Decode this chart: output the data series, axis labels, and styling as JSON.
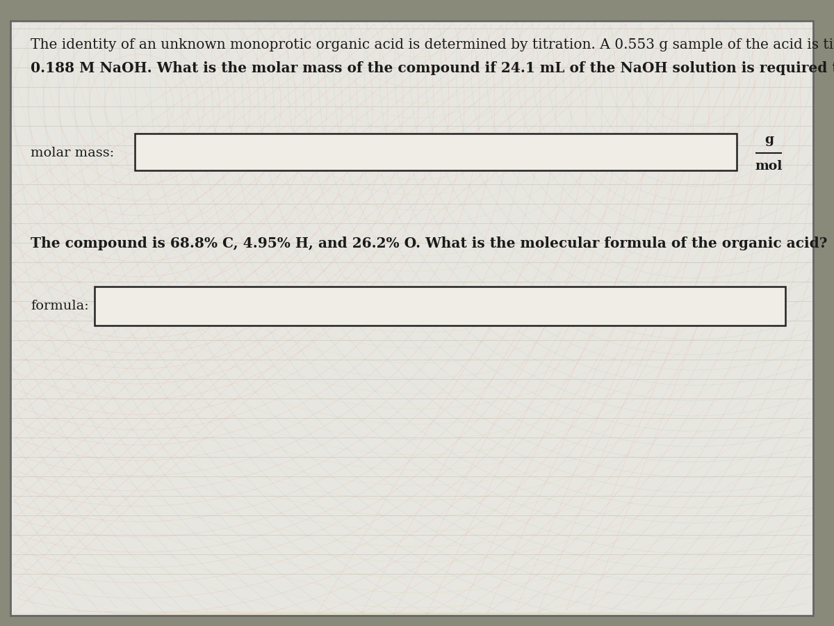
{
  "outer_bg_color": "#8a8a7a",
  "paper_bg_color": "#e8e6e0",
  "border_color": "#444444",
  "text_color": "#1a1a1a",
  "line1": "The identity of an unknown monoprotic organic acid is determined by titration. A 0.553 g sample of the acid is titrated with",
  "line2": "0.188 M NaOH. What is the molar mass of the compound if 24.1 mL of the NaOH solution is required to neutralize the sample?",
  "label1": "molar mass:",
  "unit_top": "g",
  "unit_bottom": "mol",
  "line3": "The compound is 68.8% C, 4.95% H, and 26.2% O. What is the molecular formula of the organic acid?",
  "label2": "formula:",
  "title_fontsize": 14.5,
  "label_fontsize": 14.0,
  "unit_fontsize": 13.5
}
